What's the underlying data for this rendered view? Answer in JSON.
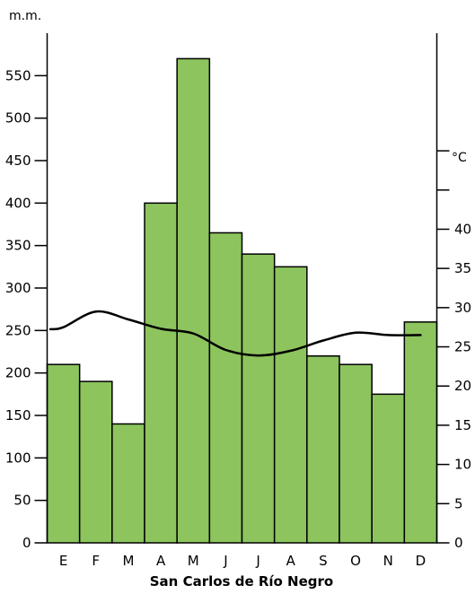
{
  "chart_data": {
    "type": "bar",
    "title": "San Carlos de Río Negro",
    "categories": [
      "E",
      "F",
      "M",
      "A",
      "M",
      "J",
      "J",
      "A",
      "S",
      "O",
      "N",
      "D"
    ],
    "series": [
      {
        "type": "bar",
        "axis": "left",
        "unit": "m.m.",
        "values": [
          210,
          190,
          140,
          400,
          570,
          365,
          340,
          325,
          220,
          210,
          175,
          260
        ]
      },
      {
        "type": "line",
        "axis": "right",
        "unit": "°C",
        "values": [
          27.5,
          29.5,
          28.5,
          27.3,
          26.7,
          24.6,
          23.9,
          24.5,
          25.8,
          26.8,
          26.5,
          26.5
        ]
      }
    ],
    "left_axis": {
      "label": "m.m.",
      "ylim": [
        0,
        600
      ],
      "ticks": [
        0,
        50,
        100,
        150,
        200,
        250,
        300,
        350,
        400,
        450,
        500,
        550
      ]
    },
    "right_axis": {
      "label": "°C",
      "ylim": [
        0,
        65
      ],
      "ticks": [
        0,
        5,
        10,
        15,
        20,
        25,
        30,
        35,
        40,
        45,
        50
      ],
      "labeled_ticks": [
        0,
        5,
        10,
        15,
        20,
        25,
        30,
        35,
        40
      ]
    },
    "colors": {
      "bar_fill": "#8dc45e",
      "bar_stroke": "#000000",
      "line": "#000000"
    },
    "grid": false,
    "legend": "none"
  }
}
